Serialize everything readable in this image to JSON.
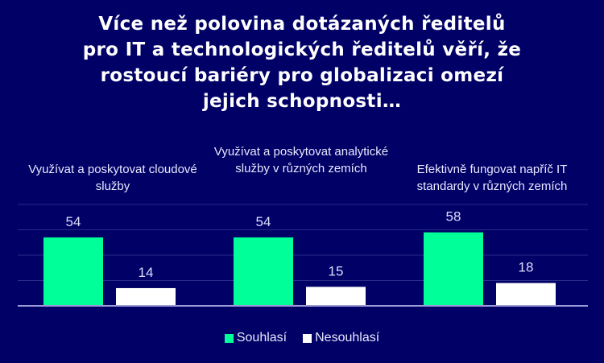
{
  "chart_data": {
    "type": "bar",
    "title": "Více než polovina dotázaných ředitelů pro IT a technologických ředitelů věří, že rostoucí bariéry pro globalizaci omezí jejich schopnosti…",
    "title_lines": [
      "Více než polovina dotázaných ředitelů",
      "pro IT a technologických ředitelů věří, že",
      "rostoucí bariéry pro globalizaci omezí",
      "jejich schopnosti…"
    ],
    "categories": [
      "Využívat a poskytovat cloudové služby",
      "Využívat a poskytovat analytické služby v různých zemích",
      "Efektivně fungovat napříč IT standardy v různých zemích"
    ],
    "series": [
      {
        "name": "Souhlasí",
        "color": "#00FF99",
        "values": [
          54,
          54,
          58
        ]
      },
      {
        "name": "Nesouhlasí",
        "color": "#FFFFFF",
        "values": [
          14,
          15,
          18
        ]
      }
    ],
    "ylim": [
      0,
      80
    ],
    "grid": true,
    "legend": "bottom",
    "xlabel": "",
    "ylabel": ""
  }
}
